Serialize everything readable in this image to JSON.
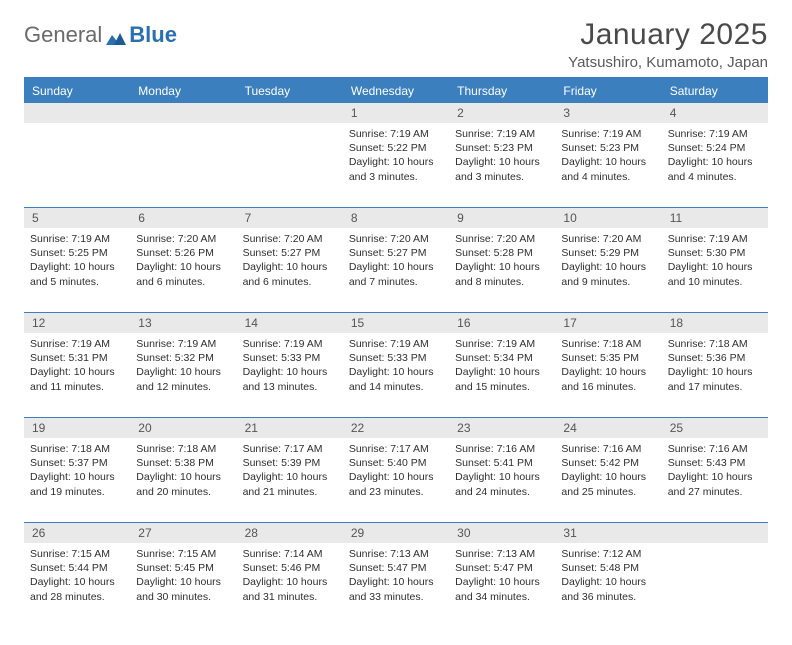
{
  "logo": {
    "text_general": "General",
    "text_blue": "Blue"
  },
  "title": "January 2025",
  "subtitle": "Yatsushiro, Kumamoto, Japan",
  "colors": {
    "accent": "#3b7fbf",
    "daynum_bg": "#e9e9e9",
    "text": "#333333",
    "header_text": "#ffffff"
  },
  "day_headers": [
    "Sunday",
    "Monday",
    "Tuesday",
    "Wednesday",
    "Thursday",
    "Friday",
    "Saturday"
  ],
  "weeks": [
    [
      {
        "num": "",
        "sunrise": "",
        "sunset": "",
        "daylight1": "",
        "daylight2": ""
      },
      {
        "num": "",
        "sunrise": "",
        "sunset": "",
        "daylight1": "",
        "daylight2": ""
      },
      {
        "num": "",
        "sunrise": "",
        "sunset": "",
        "daylight1": "",
        "daylight2": ""
      },
      {
        "num": "1",
        "sunrise": "Sunrise: 7:19 AM",
        "sunset": "Sunset: 5:22 PM",
        "daylight1": "Daylight: 10 hours",
        "daylight2": "and 3 minutes."
      },
      {
        "num": "2",
        "sunrise": "Sunrise: 7:19 AM",
        "sunset": "Sunset: 5:23 PM",
        "daylight1": "Daylight: 10 hours",
        "daylight2": "and 3 minutes."
      },
      {
        "num": "3",
        "sunrise": "Sunrise: 7:19 AM",
        "sunset": "Sunset: 5:23 PM",
        "daylight1": "Daylight: 10 hours",
        "daylight2": "and 4 minutes."
      },
      {
        "num": "4",
        "sunrise": "Sunrise: 7:19 AM",
        "sunset": "Sunset: 5:24 PM",
        "daylight1": "Daylight: 10 hours",
        "daylight2": "and 4 minutes."
      }
    ],
    [
      {
        "num": "5",
        "sunrise": "Sunrise: 7:19 AM",
        "sunset": "Sunset: 5:25 PM",
        "daylight1": "Daylight: 10 hours",
        "daylight2": "and 5 minutes."
      },
      {
        "num": "6",
        "sunrise": "Sunrise: 7:20 AM",
        "sunset": "Sunset: 5:26 PM",
        "daylight1": "Daylight: 10 hours",
        "daylight2": "and 6 minutes."
      },
      {
        "num": "7",
        "sunrise": "Sunrise: 7:20 AM",
        "sunset": "Sunset: 5:27 PM",
        "daylight1": "Daylight: 10 hours",
        "daylight2": "and 6 minutes."
      },
      {
        "num": "8",
        "sunrise": "Sunrise: 7:20 AM",
        "sunset": "Sunset: 5:27 PM",
        "daylight1": "Daylight: 10 hours",
        "daylight2": "and 7 minutes."
      },
      {
        "num": "9",
        "sunrise": "Sunrise: 7:20 AM",
        "sunset": "Sunset: 5:28 PM",
        "daylight1": "Daylight: 10 hours",
        "daylight2": "and 8 minutes."
      },
      {
        "num": "10",
        "sunrise": "Sunrise: 7:20 AM",
        "sunset": "Sunset: 5:29 PM",
        "daylight1": "Daylight: 10 hours",
        "daylight2": "and 9 minutes."
      },
      {
        "num": "11",
        "sunrise": "Sunrise: 7:19 AM",
        "sunset": "Sunset: 5:30 PM",
        "daylight1": "Daylight: 10 hours",
        "daylight2": "and 10 minutes."
      }
    ],
    [
      {
        "num": "12",
        "sunrise": "Sunrise: 7:19 AM",
        "sunset": "Sunset: 5:31 PM",
        "daylight1": "Daylight: 10 hours",
        "daylight2": "and 11 minutes."
      },
      {
        "num": "13",
        "sunrise": "Sunrise: 7:19 AM",
        "sunset": "Sunset: 5:32 PM",
        "daylight1": "Daylight: 10 hours",
        "daylight2": "and 12 minutes."
      },
      {
        "num": "14",
        "sunrise": "Sunrise: 7:19 AM",
        "sunset": "Sunset: 5:33 PM",
        "daylight1": "Daylight: 10 hours",
        "daylight2": "and 13 minutes."
      },
      {
        "num": "15",
        "sunrise": "Sunrise: 7:19 AM",
        "sunset": "Sunset: 5:33 PM",
        "daylight1": "Daylight: 10 hours",
        "daylight2": "and 14 minutes."
      },
      {
        "num": "16",
        "sunrise": "Sunrise: 7:19 AM",
        "sunset": "Sunset: 5:34 PM",
        "daylight1": "Daylight: 10 hours",
        "daylight2": "and 15 minutes."
      },
      {
        "num": "17",
        "sunrise": "Sunrise: 7:18 AM",
        "sunset": "Sunset: 5:35 PM",
        "daylight1": "Daylight: 10 hours",
        "daylight2": "and 16 minutes."
      },
      {
        "num": "18",
        "sunrise": "Sunrise: 7:18 AM",
        "sunset": "Sunset: 5:36 PM",
        "daylight1": "Daylight: 10 hours",
        "daylight2": "and 17 minutes."
      }
    ],
    [
      {
        "num": "19",
        "sunrise": "Sunrise: 7:18 AM",
        "sunset": "Sunset: 5:37 PM",
        "daylight1": "Daylight: 10 hours",
        "daylight2": "and 19 minutes."
      },
      {
        "num": "20",
        "sunrise": "Sunrise: 7:18 AM",
        "sunset": "Sunset: 5:38 PM",
        "daylight1": "Daylight: 10 hours",
        "daylight2": "and 20 minutes."
      },
      {
        "num": "21",
        "sunrise": "Sunrise: 7:17 AM",
        "sunset": "Sunset: 5:39 PM",
        "daylight1": "Daylight: 10 hours",
        "daylight2": "and 21 minutes."
      },
      {
        "num": "22",
        "sunrise": "Sunrise: 7:17 AM",
        "sunset": "Sunset: 5:40 PM",
        "daylight1": "Daylight: 10 hours",
        "daylight2": "and 23 minutes."
      },
      {
        "num": "23",
        "sunrise": "Sunrise: 7:16 AM",
        "sunset": "Sunset: 5:41 PM",
        "daylight1": "Daylight: 10 hours",
        "daylight2": "and 24 minutes."
      },
      {
        "num": "24",
        "sunrise": "Sunrise: 7:16 AM",
        "sunset": "Sunset: 5:42 PM",
        "daylight1": "Daylight: 10 hours",
        "daylight2": "and 25 minutes."
      },
      {
        "num": "25",
        "sunrise": "Sunrise: 7:16 AM",
        "sunset": "Sunset: 5:43 PM",
        "daylight1": "Daylight: 10 hours",
        "daylight2": "and 27 minutes."
      }
    ],
    [
      {
        "num": "26",
        "sunrise": "Sunrise: 7:15 AM",
        "sunset": "Sunset: 5:44 PM",
        "daylight1": "Daylight: 10 hours",
        "daylight2": "and 28 minutes."
      },
      {
        "num": "27",
        "sunrise": "Sunrise: 7:15 AM",
        "sunset": "Sunset: 5:45 PM",
        "daylight1": "Daylight: 10 hours",
        "daylight2": "and 30 minutes."
      },
      {
        "num": "28",
        "sunrise": "Sunrise: 7:14 AM",
        "sunset": "Sunset: 5:46 PM",
        "daylight1": "Daylight: 10 hours",
        "daylight2": "and 31 minutes."
      },
      {
        "num": "29",
        "sunrise": "Sunrise: 7:13 AM",
        "sunset": "Sunset: 5:47 PM",
        "daylight1": "Daylight: 10 hours",
        "daylight2": "and 33 minutes."
      },
      {
        "num": "30",
        "sunrise": "Sunrise: 7:13 AM",
        "sunset": "Sunset: 5:47 PM",
        "daylight1": "Daylight: 10 hours",
        "daylight2": "and 34 minutes."
      },
      {
        "num": "31",
        "sunrise": "Sunrise: 7:12 AM",
        "sunset": "Sunset: 5:48 PM",
        "daylight1": "Daylight: 10 hours",
        "daylight2": "and 36 minutes."
      },
      {
        "num": "",
        "sunrise": "",
        "sunset": "",
        "daylight1": "",
        "daylight2": ""
      }
    ]
  ]
}
